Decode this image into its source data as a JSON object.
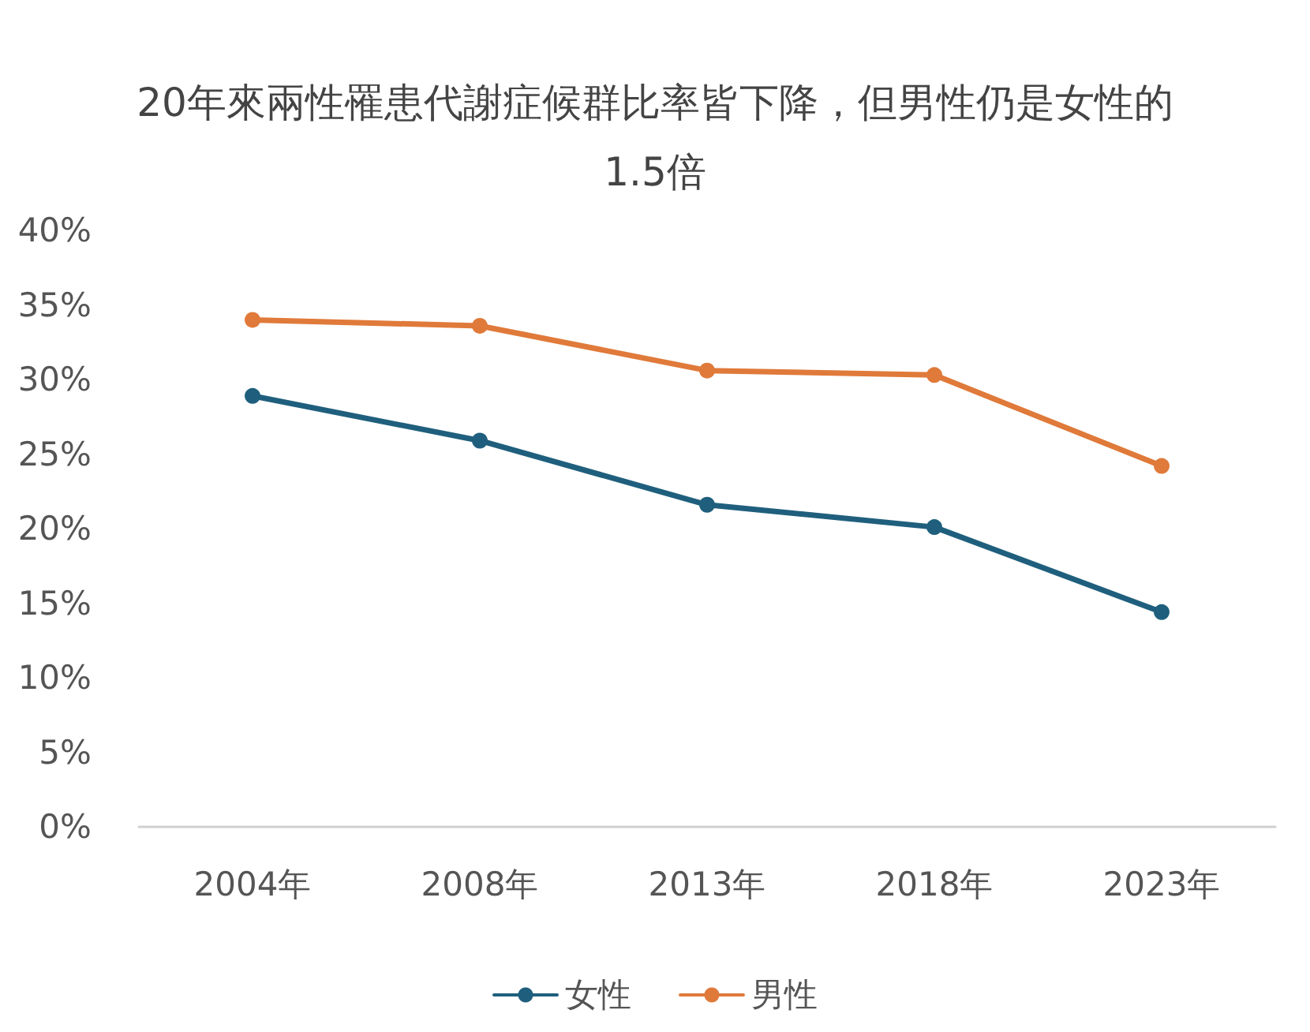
{
  "chart_data": {
    "type": "line",
    "title": "20年來兩性罹患代謝症候群比率皆下降，但男性仍是女性的1.5倍",
    "categories": [
      "2004年",
      "2008年",
      "2013年",
      "2018年",
      "2023年"
    ],
    "series": [
      {
        "name": "女性",
        "color": "#1f5f7d",
        "values": [
          28.9,
          25.9,
          21.6,
          20.1,
          14.4
        ]
      },
      {
        "name": "男性",
        "color": "#e07a3a",
        "values": [
          34.0,
          33.6,
          30.6,
          30.3,
          24.2
        ]
      }
    ],
    "ylim": [
      0,
      40
    ],
    "yticks": [
      {
        "value": 0,
        "label": "0%"
      },
      {
        "value": 5,
        "label": "5%"
      },
      {
        "value": 10,
        "label": "10%"
      },
      {
        "value": 15,
        "label": "15%"
      },
      {
        "value": 20,
        "label": "20%"
      },
      {
        "value": 25,
        "label": "25%"
      },
      {
        "value": 30,
        "label": "30%"
      },
      {
        "value": 35,
        "label": "35%"
      },
      {
        "value": 40,
        "label": "40%"
      }
    ],
    "grid": false,
    "legend": "bottom",
    "marker": "circle",
    "line_style": "solid"
  }
}
